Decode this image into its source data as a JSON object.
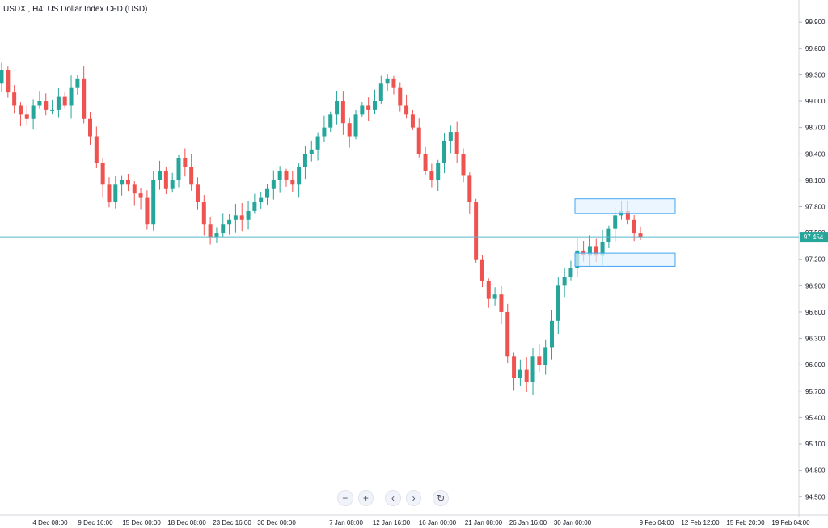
{
  "header": {
    "title": "USDX., H4: US Dollar Index CFD (USD)"
  },
  "controls": {
    "zoom_out": "−",
    "zoom_in": "+",
    "scroll_left": "‹",
    "scroll_right": "›",
    "reset": "↻"
  },
  "colors": {
    "up": "#26a69a",
    "down": "#ef5350",
    "price_line": "#26a69a",
    "zone_fill": "#e3f2fd",
    "zone_stroke": "#42a5f5",
    "hline": "#59b7cc"
  },
  "chart_data": {
    "type": "candlestick",
    "title": "USDX., H4: US Dollar Index CFD (USD)",
    "ylim": [
      94.3,
      100.15
    ],
    "y_ticks": [
      "99.900",
      "99.600",
      "99.300",
      "99.000",
      "98.700",
      "98.400",
      "98.100",
      "97.800",
      "97.500",
      "97.200",
      "96.900",
      "96.600",
      "96.300",
      "96.000",
      "95.700",
      "95.400",
      "95.100",
      "94.800",
      "94.500"
    ],
    "x_ticks": [
      "4 Dec 08:00",
      "9 Dec 16:00",
      "15 Dec 00:00",
      "18 Dec 08:00",
      "23 Dec 16:00",
      "30 Dec 00:00",
      "7 Jan 08:00",
      "12 Jan 16:00",
      "16 Jan 00:00",
      "21 Jan 08:00",
      "26 Jan 16:00",
      "30 Jan 00:00",
      "9 Feb 04:00",
      "12 Feb 12:00",
      "15 Feb 20:00",
      "19 Feb 04:00"
    ],
    "current_price": "97.454",
    "closes": [
      99.35,
      99.1,
      98.95,
      98.85,
      98.8,
      98.95,
      99.0,
      98.9,
      98.9,
      99.05,
      98.95,
      99.15,
      99.25,
      98.8,
      98.6,
      98.3,
      98.05,
      97.85,
      98.05,
      98.1,
      98.05,
      97.95,
      97.9,
      97.6,
      98.1,
      98.2,
      98.0,
      98.1,
      98.35,
      98.25,
      98.05,
      97.85,
      97.6,
      97.45,
      97.5,
      97.6,
      97.65,
      97.7,
      97.65,
      97.75,
      97.85,
      97.9,
      98.0,
      98.1,
      98.2,
      98.1,
      98.05,
      98.25,
      98.4,
      98.45,
      98.6,
      98.7,
      98.85,
      99.0,
      98.75,
      98.6,
      98.85,
      98.95,
      98.9,
      99.0,
      99.2,
      99.25,
      99.15,
      98.95,
      98.85,
      98.7,
      98.4,
      98.2,
      98.1,
      98.3,
      98.55,
      98.65,
      98.4,
      98.15,
      97.85,
      97.2,
      96.95,
      96.75,
      96.8,
      96.6,
      96.1,
      95.85,
      95.95,
      95.8,
      96.1,
      96.0,
      96.2,
      96.5,
      96.9,
      97.0,
      97.1,
      97.3,
      97.25,
      97.35,
      97.25,
      97.4,
      97.55,
      97.7,
      97.75,
      97.65,
      97.5,
      97.45
    ],
    "zones": [
      {
        "name": "resistance-zone",
        "from": 97.72,
        "to": 97.89
      },
      {
        "name": "support-zone",
        "from": 97.12,
        "to": 97.27
      }
    ]
  }
}
